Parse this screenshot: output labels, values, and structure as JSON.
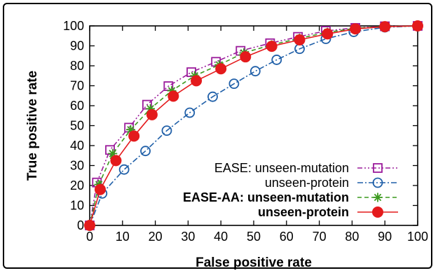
{
  "chart_data": {
    "type": "line",
    "xlabel": "False positive rate",
    "ylabel": "True positive rate",
    "xlim": [
      0,
      100
    ],
    "ylim": [
      0,
      100
    ],
    "xticks": [
      "0",
      "10",
      "20",
      "30",
      "40",
      "50",
      "60",
      "70",
      "80",
      "90",
      "100"
    ],
    "yticks": [
      "0",
      "10",
      "20",
      "30",
      "40",
      "50",
      "60",
      "70",
      "80",
      "90",
      "100"
    ],
    "grid": false,
    "legend_position": "bottom-right",
    "series": [
      {
        "name": "EASE: unseen-mutation",
        "color": "#9b1b9b",
        "marker": "square-open",
        "line": "dash-dot-dot",
        "bold": false,
        "x": [
          0,
          2.2,
          6.2,
          12,
          17.5,
          24,
          31,
          38.5,
          46,
          55,
          63.5,
          72,
          81,
          90,
          100
        ],
        "y": [
          0,
          21.5,
          37.8,
          49,
          60.5,
          69.8,
          76.8,
          82,
          87.5,
          91.3,
          94.5,
          97.5,
          99,
          99.8,
          100
        ]
      },
      {
        "name": "unseen-protein",
        "color": "#1f5fa8",
        "marker": "circle-open",
        "line": "dash-dot",
        "bold": false,
        "x": [
          0,
          3.8,
          10.5,
          17,
          23.5,
          30.5,
          37.5,
          44,
          50.5,
          57,
          64,
          72,
          80.5,
          90,
          100
        ],
        "y": [
          0,
          16,
          28,
          37.3,
          47.5,
          56.5,
          64.5,
          71,
          77.3,
          83,
          88.5,
          93.5,
          97,
          99.3,
          100
        ]
      },
      {
        "name": "EASE-AA: unseen-mutation",
        "color": "#3c9a1e",
        "marker": "asterisk",
        "line": "dashed",
        "bold": true,
        "x": [
          0,
          2.8,
          7,
          12.5,
          18.5,
          25,
          32,
          39.5,
          47,
          55.5,
          64,
          72.5,
          81,
          90,
          100
        ],
        "y": [
          0,
          20.5,
          36,
          48,
          58.5,
          67.5,
          75,
          80.5,
          86.5,
          90.5,
          93.8,
          96.8,
          98.8,
          99.7,
          100
        ]
      },
      {
        "name": "unseen-protein",
        "color": "#e41a1c",
        "marker": "circle-filled",
        "line": "solid",
        "bold": true,
        "x": [
          0,
          3.2,
          8,
          13.5,
          19,
          25.5,
          32.5,
          40,
          47.5,
          55.5,
          64,
          72.5,
          81,
          90,
          100
        ],
        "y": [
          0,
          18,
          32.5,
          44.8,
          55.5,
          64.8,
          72.5,
          78.5,
          84.5,
          89.8,
          93,
          96,
          98.5,
          99.6,
          100
        ]
      }
    ]
  }
}
